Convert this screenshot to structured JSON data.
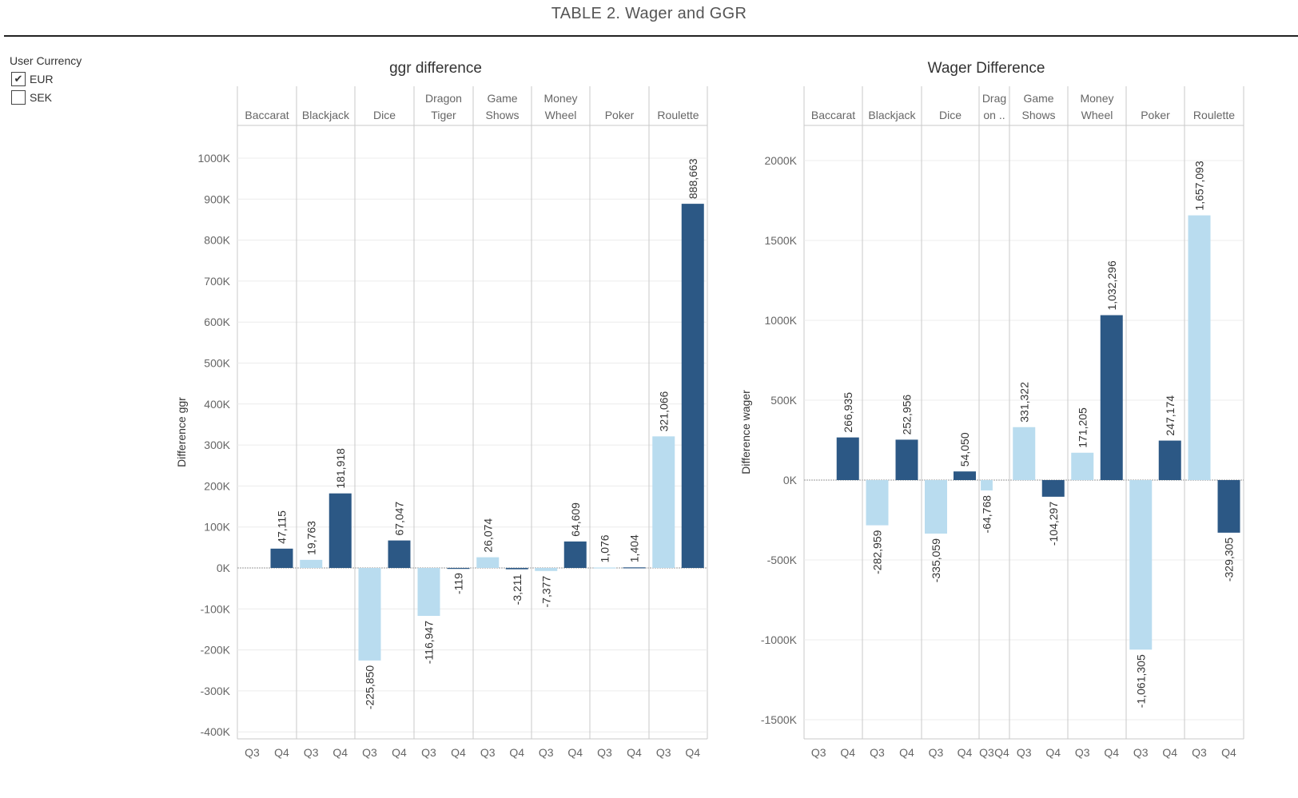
{
  "page": {
    "title": "TABLE 2. Wager and GGR"
  },
  "filter": {
    "title": "User Currency",
    "options": [
      {
        "label": "EUR",
        "checked": true
      },
      {
        "label": "SEK",
        "checked": false
      }
    ]
  },
  "colors": {
    "q3": "#b9dcef",
    "q4": "#2c5885",
    "axis_text": "#666666",
    "grid": "#ececec",
    "divider": "#c8c8c8"
  },
  "chart_data": [
    {
      "type": "bar",
      "title": "ggr difference",
      "ylabel": "Difference ggr",
      "xlabel": "",
      "ylim": [
        -420000,
        1030000
      ],
      "yticks": [
        -400000,
        -300000,
        -200000,
        -100000,
        0,
        100000,
        200000,
        300000,
        400000,
        500000,
        600000,
        700000,
        800000,
        900000,
        1000000
      ],
      "ytick_labels": [
        "-400K",
        "-300K",
        "-200K",
        "-100K",
        "0K",
        "100K",
        "200K",
        "300K",
        "400K",
        "500K",
        "600K",
        "700K",
        "800K",
        "900K",
        "1000K"
      ],
      "grid": true,
      "sub_categories": [
        "Q3",
        "Q4"
      ],
      "groups": [
        {
          "label": [
            "Baccarat"
          ],
          "values": [
            null,
            47115
          ],
          "labels": [
            null,
            "47,115"
          ]
        },
        {
          "label": [
            "Blackjack"
          ],
          "values": [
            19763,
            181918
          ],
          "labels": [
            "19,763",
            "181,918"
          ]
        },
        {
          "label": [
            "Dice"
          ],
          "values": [
            -225850,
            67047
          ],
          "labels": [
            "-225,850",
            "67,047"
          ]
        },
        {
          "label": [
            "Dragon",
            "Tiger"
          ],
          "values": [
            -116947,
            -119
          ],
          "labels": [
            "-116,947",
            "-119"
          ]
        },
        {
          "label": [
            "Game",
            "Shows"
          ],
          "values": [
            26074,
            -3211
          ],
          "labels": [
            "26,074",
            "-3,211"
          ]
        },
        {
          "label": [
            "Money",
            "Wheel"
          ],
          "values": [
            -7377,
            64609
          ],
          "labels": [
            "-7,377",
            "64,609"
          ]
        },
        {
          "label": [
            "Poker"
          ],
          "values": [
            1076,
            1404
          ],
          "labels": [
            "1,076",
            "1,404"
          ]
        },
        {
          "label": [
            "Roulette"
          ],
          "values": [
            321066,
            888663
          ],
          "labels": [
            "321,066",
            "888,663"
          ]
        }
      ]
    },
    {
      "type": "bar",
      "title": "Wager Difference",
      "ylabel": "Difference wager",
      "xlabel": "",
      "ylim": [
        -1610000,
        2160000
      ],
      "yticks": [
        -1500000,
        -1000000,
        -500000,
        0,
        500000,
        1000000,
        1500000,
        2000000
      ],
      "ytick_labels": [
        "-1500K",
        "-1000K",
        "-500K",
        "0K",
        "500K",
        "1000K",
        "1500K",
        "2000K"
      ],
      "grid": true,
      "sub_categories": [
        "Q3",
        "Q4"
      ],
      "groups": [
        {
          "label": [
            "Baccarat"
          ],
          "values": [
            null,
            266935
          ],
          "labels": [
            null,
            "266,935"
          ]
        },
        {
          "label": [
            "Blackjack"
          ],
          "values": [
            -282959,
            252956
          ],
          "labels": [
            "-282,959",
            "252,956"
          ]
        },
        {
          "label": [
            "Dice"
          ],
          "values": [
            -335059,
            54050
          ],
          "labels": [
            "-335,059",
            "54,050"
          ]
        },
        {
          "label": [
            "Drag",
            "on .."
          ],
          "values": [
            -64768,
            null
          ],
          "labels": [
            "-64,768",
            null
          ]
        },
        {
          "label": [
            "Game",
            "Shows"
          ],
          "values": [
            331322,
            -104297
          ],
          "labels": [
            "331,322",
            "-104,297"
          ]
        },
        {
          "label": [
            "Money",
            "Wheel"
          ],
          "values": [
            171205,
            1032296
          ],
          "labels": [
            "171,205",
            "1,032,296"
          ]
        },
        {
          "label": [
            "Poker"
          ],
          "values": [
            -1061305,
            247174
          ],
          "labels": [
            "-1,061,305",
            "247,174"
          ]
        },
        {
          "label": [
            "Roulette"
          ],
          "values": [
            1657093,
            -329305
          ],
          "labels": [
            "1,657,093",
            "-329,305"
          ]
        }
      ]
    }
  ]
}
